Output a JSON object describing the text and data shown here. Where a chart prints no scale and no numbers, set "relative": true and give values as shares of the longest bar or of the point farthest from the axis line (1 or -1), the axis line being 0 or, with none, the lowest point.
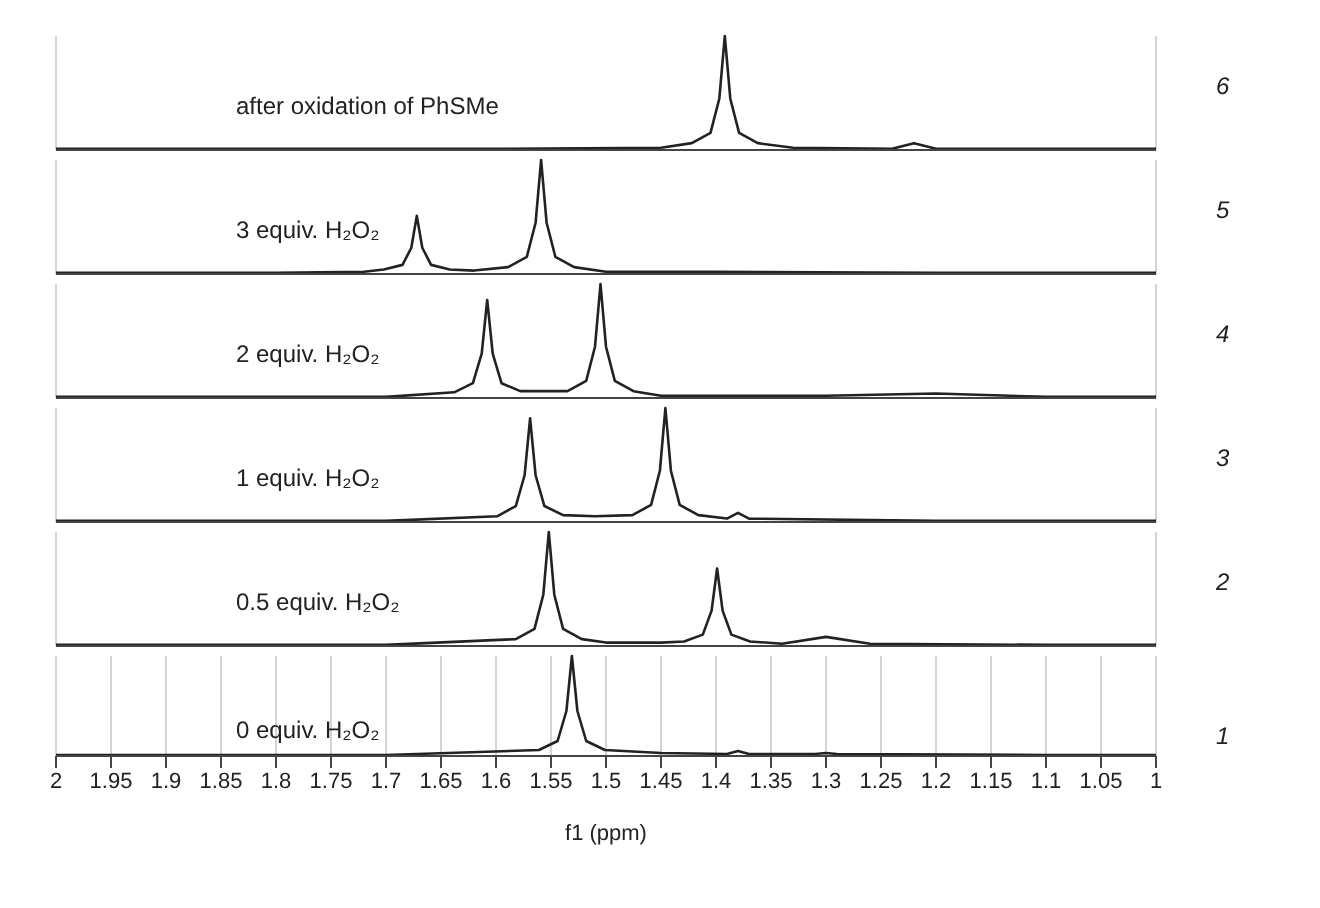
{
  "chart_data": [
    {
      "type": "line",
      "relative": true,
      "tick_labels": false,
      "grid": "x",
      "xlim": [
        2,
        1
      ],
      "xticks": [
        2,
        1.95,
        1.9,
        1.85,
        1.8,
        1.75,
        1.7,
        1.65,
        1.6,
        1.55,
        1.5,
        1.45,
        1.4,
        1.35,
        1.3,
        1.25,
        1.2,
        1.15,
        1.1,
        1.05,
        1
      ],
      "annotations": [
        "after oxidation of PhSMe",
        "6"
      ],
      "x": [
        2,
        1.9,
        1.8,
        1.6,
        1.45,
        1.422,
        1.405,
        1.397,
        1.392,
        1.387,
        1.379,
        1.362,
        1.33,
        1.24,
        1.22,
        1.2,
        1.1,
        1
      ],
      "values": [
        0.01,
        0.01,
        0.01,
        0.01,
        0.02,
        0.06,
        0.15,
        0.45,
        1,
        0.45,
        0.15,
        0.06,
        0.02,
        0.01,
        0.06,
        0.01,
        0.01,
        0.01
      ],
      "color": "#222222"
    },
    {
      "type": "line",
      "relative": true,
      "tick_labels": false,
      "grid": "x",
      "xlim": [
        2,
        1
      ],
      "xticks": [
        2,
        1.95,
        1.9,
        1.85,
        1.8,
        1.75,
        1.7,
        1.65,
        1.6,
        1.55,
        1.5,
        1.45,
        1.4,
        1.35,
        1.3,
        1.25,
        1.2,
        1.15,
        1.1,
        1.05,
        1
      ],
      "annotations": [
        "3 equiv. H₂O₂",
        "5"
      ],
      "x": [
        2,
        1.9,
        1.8,
        1.72,
        1.702,
        1.685,
        1.677,
        1.672,
        1.667,
        1.659,
        1.642,
        1.62,
        1.589,
        1.572,
        1.564,
        1.559,
        1.554,
        1.546,
        1.529,
        1.5,
        1.4,
        1.2,
        1
      ],
      "values": [
        0.01,
        0.01,
        0.01,
        0.02,
        0.04,
        0.08,
        0.23,
        0.51,
        0.23,
        0.08,
        0.04,
        0.03,
        0.06,
        0.15,
        0.45,
        1,
        0.45,
        0.15,
        0.06,
        0.02,
        0.02,
        0.01,
        0.01
      ],
      "color": "#222222"
    },
    {
      "type": "line",
      "relative": true,
      "tick_labels": false,
      "grid": "x",
      "xlim": [
        2,
        1
      ],
      "xticks": [
        2,
        1.95,
        1.9,
        1.85,
        1.8,
        1.75,
        1.7,
        1.65,
        1.6,
        1.55,
        1.5,
        1.45,
        1.4,
        1.35,
        1.3,
        1.25,
        1.2,
        1.15,
        1.1,
        1.05,
        1
      ],
      "annotations": [
        "2 equiv. H₂O₂",
        "4"
      ],
      "x": [
        2,
        1.9,
        1.7,
        1.638,
        1.621,
        1.613,
        1.608,
        1.603,
        1.595,
        1.578,
        1.556,
        1.535,
        1.518,
        1.51,
        1.505,
        1.5,
        1.492,
        1.475,
        1.45,
        1.3,
        1.2,
        1.1,
        1
      ],
      "values": [
        0.01,
        0.01,
        0.01,
        0.05,
        0.13,
        0.39,
        0.86,
        0.39,
        0.13,
        0.06,
        0.06,
        0.06,
        0.15,
        0.45,
        1,
        0.45,
        0.15,
        0.06,
        0.02,
        0.02,
        0.04,
        0.01,
        0.01
      ],
      "color": "#222222"
    },
    {
      "type": "line",
      "relative": true,
      "tick_labels": false,
      "grid": "x",
      "xlim": [
        2,
        1
      ],
      "xticks": [
        2,
        1.95,
        1.9,
        1.85,
        1.8,
        1.75,
        1.7,
        1.65,
        1.6,
        1.55,
        1.5,
        1.45,
        1.4,
        1.35,
        1.3,
        1.25,
        1.2,
        1.15,
        1.1,
        1.05,
        1
      ],
      "annotations": [
        "1 equiv. H₂O₂",
        "3"
      ],
      "x": [
        2,
        1.9,
        1.7,
        1.599,
        1.582,
        1.574,
        1.569,
        1.564,
        1.556,
        1.539,
        1.51,
        1.476,
        1.459,
        1.451,
        1.446,
        1.441,
        1.433,
        1.416,
        1.39,
        1.38,
        1.37,
        1.2,
        1
      ],
      "values": [
        0.01,
        0.01,
        0.01,
        0.05,
        0.14,
        0.41,
        0.91,
        0.41,
        0.14,
        0.06,
        0.05,
        0.06,
        0.15,
        0.45,
        1,
        0.45,
        0.15,
        0.06,
        0.03,
        0.08,
        0.03,
        0.01,
        0.01
      ],
      "color": "#222222"
    },
    {
      "type": "line",
      "relative": true,
      "tick_labels": false,
      "grid": "x",
      "xlim": [
        2,
        1
      ],
      "xticks": [
        2,
        1.95,
        1.9,
        1.85,
        1.8,
        1.75,
        1.7,
        1.65,
        1.6,
        1.55,
        1.5,
        1.45,
        1.4,
        1.35,
        1.3,
        1.25,
        1.2,
        1.15,
        1.1,
        1.05,
        1
      ],
      "annotations": [
        "0.5 equiv. H₂O₂",
        "2"
      ],
      "x": [
        2,
        1.9,
        1.7,
        1.582,
        1.565,
        1.557,
        1.552,
        1.547,
        1.539,
        1.522,
        1.5,
        1.45,
        1.429,
        1.412,
        1.404,
        1.399,
        1.394,
        1.386,
        1.369,
        1.34,
        1.3,
        1.26,
        1.1,
        1
      ],
      "values": [
        0.01,
        0.01,
        0.01,
        0.06,
        0.15,
        0.45,
        1,
        0.45,
        0.15,
        0.06,
        0.03,
        0.03,
        0.04,
        0.1,
        0.31,
        0.68,
        0.31,
        0.1,
        0.04,
        0.02,
        0.08,
        0.02,
        0.01,
        0.01
      ],
      "color": "#222222"
    },
    {
      "type": "line",
      "relative": true,
      "tick_labels": "x",
      "grid": "x",
      "xlim": [
        2,
        1
      ],
      "xticks": [
        2,
        1.95,
        1.9,
        1.85,
        1.8,
        1.75,
        1.7,
        1.65,
        1.6,
        1.55,
        1.5,
        1.45,
        1.4,
        1.35,
        1.3,
        1.25,
        1.2,
        1.15,
        1.1,
        1.05,
        1
      ],
      "xlabel": "f1 (ppm)",
      "annotations": [
        "0 equiv. H₂O₂",
        "1"
      ],
      "x": [
        2,
        1.9,
        1.7,
        1.561,
        1.544,
        1.536,
        1.531,
        1.526,
        1.518,
        1.501,
        1.45,
        1.39,
        1.38,
        1.37,
        1.31,
        1.3,
        1.29,
        1.1,
        1
      ],
      "values": [
        0.01,
        0.01,
        0.01,
        0.06,
        0.15,
        0.45,
        1,
        0.45,
        0.15,
        0.06,
        0.03,
        0.02,
        0.05,
        0.02,
        0.02,
        0.03,
        0.02,
        0.01,
        0.01
      ],
      "color": "#222222"
    }
  ]
}
